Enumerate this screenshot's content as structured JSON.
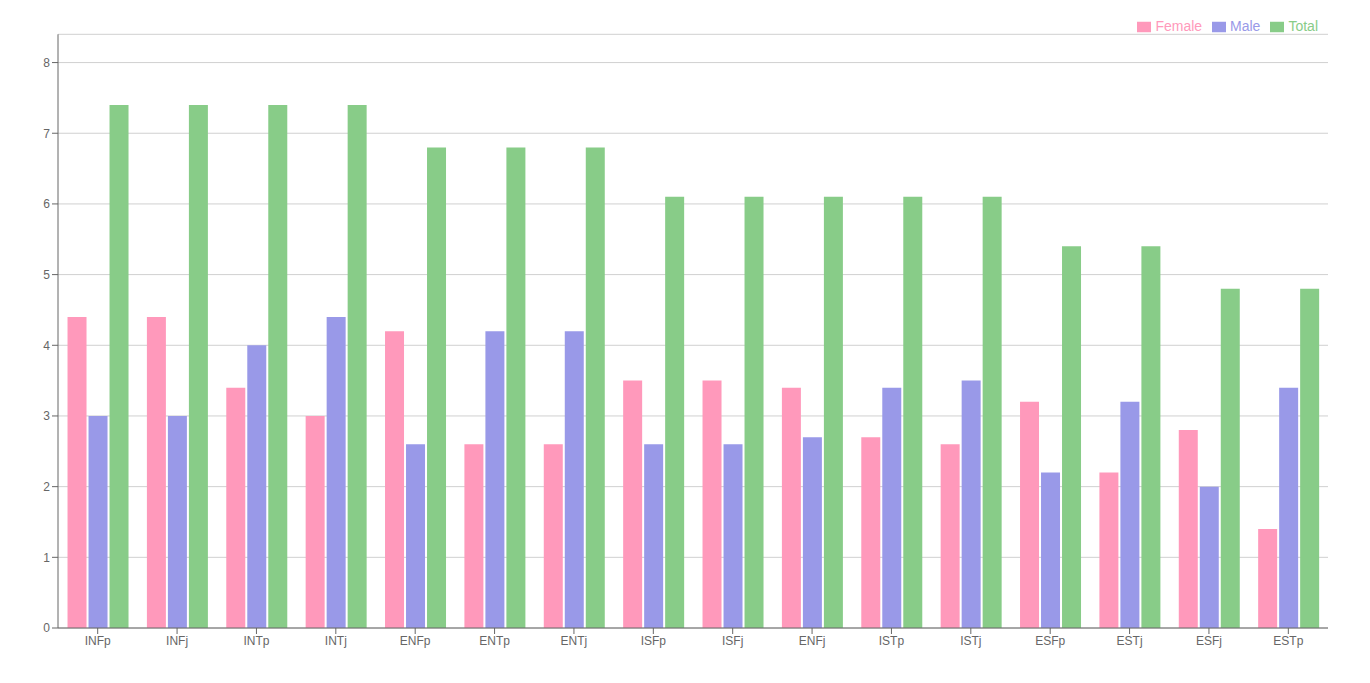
{
  "chart_data": {
    "type": "bar",
    "categories": [
      "INFp",
      "INFj",
      "INTp",
      "INTj",
      "ENFp",
      "ENTp",
      "ENTj",
      "ISFp",
      "ISFj",
      "ENFj",
      "ISTp",
      "ISTj",
      "ESFp",
      "ESTj",
      "ESFj",
      "ESTp"
    ],
    "series": [
      {
        "name": "Female",
        "color": "#ff99bb",
        "values": [
          4.4,
          4.4,
          3.4,
          3.0,
          4.2,
          2.6,
          2.6,
          3.5,
          3.5,
          3.4,
          2.7,
          2.6,
          3.2,
          2.2,
          2.8,
          1.4
        ]
      },
      {
        "name": "Male",
        "color": "#9999e8",
        "values": [
          3.0,
          3.0,
          4.0,
          4.4,
          2.6,
          4.2,
          4.2,
          2.6,
          2.6,
          2.7,
          3.4,
          3.5,
          2.2,
          3.2,
          2.0,
          3.4
        ]
      },
      {
        "name": "Total",
        "color": "#88cc88",
        "values": [
          7.4,
          7.4,
          7.4,
          7.4,
          6.8,
          6.8,
          6.8,
          6.1,
          6.1,
          6.1,
          6.1,
          6.1,
          5.4,
          5.4,
          4.8,
          4.8
        ]
      }
    ],
    "ylim": [
      0,
      8.4
    ],
    "yticks": [
      0,
      1,
      2,
      3,
      4,
      5,
      6,
      7,
      8
    ],
    "grid": true,
    "legend": "upper right"
  }
}
